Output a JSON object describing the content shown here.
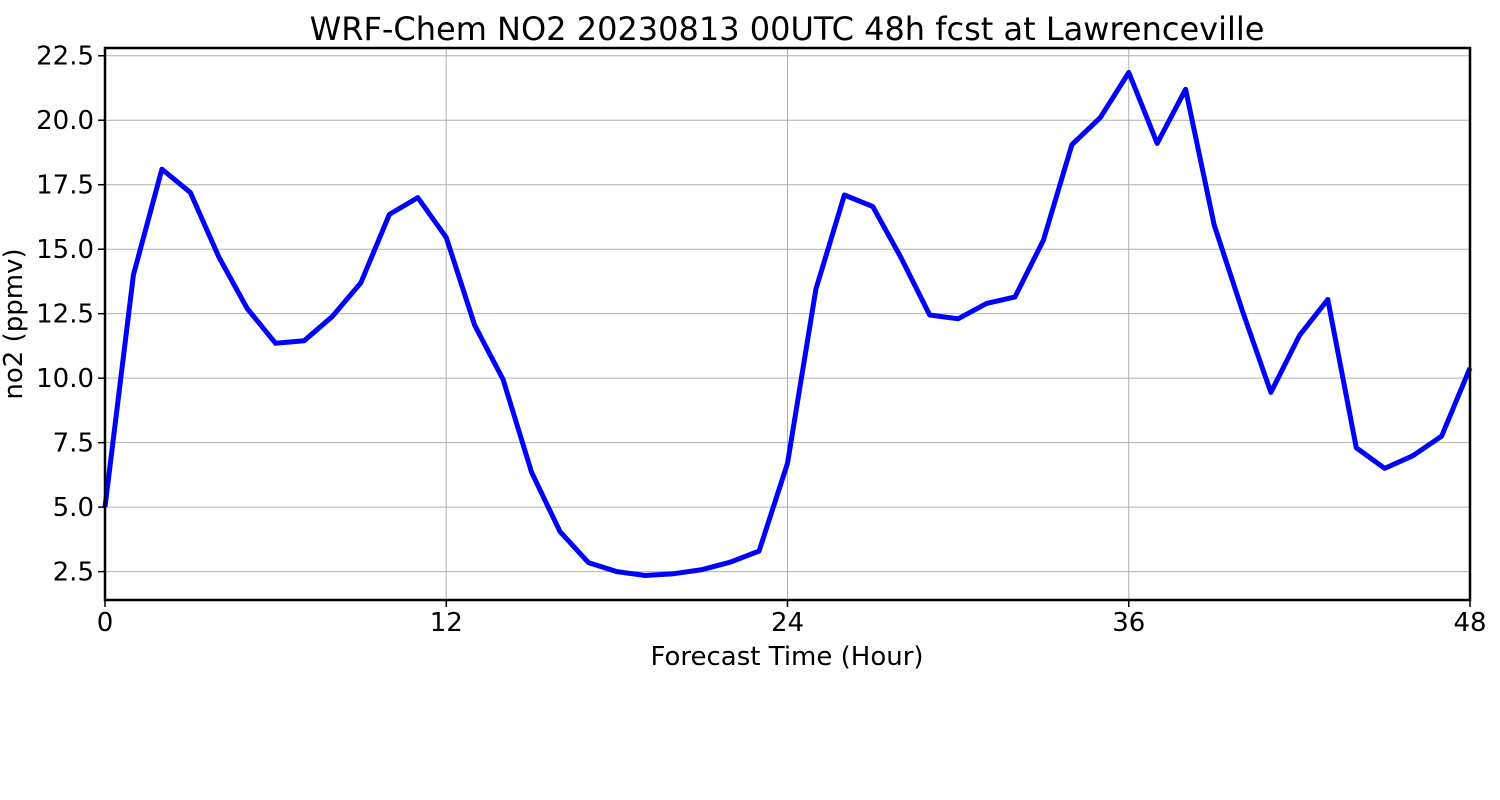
{
  "chart_data": {
    "type": "line",
    "title": "WRF-Chem NO2  20230813 00UTC 48h fcst at Lawrenceville",
    "xlabel": "Forecast Time (Hour)",
    "ylabel": "no2  (ppmv)",
    "xlim": [
      0,
      48
    ],
    "ylim": [
      1.4,
      22.8
    ],
    "xticks": [
      0,
      12,
      24,
      36,
      48
    ],
    "xtick_labels": [
      "0",
      "12",
      "24",
      "36",
      "48"
    ],
    "yticks": [
      2.5,
      5.0,
      7.5,
      10.0,
      12.5,
      15.0,
      17.5,
      20.0,
      22.5
    ],
    "ytick_labels": [
      "2.5",
      "5.0",
      "7.5",
      "10.0",
      "12.5",
      "15.0",
      "17.5",
      "20.0",
      "22.5"
    ],
    "grid": true,
    "line_color": "#0000ff",
    "series": [
      {
        "x": [
          0,
          1,
          2,
          3,
          4,
          5,
          6,
          7,
          8,
          9,
          10,
          11,
          12,
          13,
          14,
          15,
          16,
          17,
          18,
          19,
          20,
          21,
          22,
          23,
          24,
          25,
          26,
          27,
          28,
          29,
          30,
          31,
          32,
          33,
          34,
          35,
          36,
          37,
          38,
          39,
          40,
          41,
          42,
          43,
          44,
          45,
          46,
          47,
          48
        ],
        "values": [
          5.0,
          14.0,
          18.1,
          17.2,
          14.7,
          12.7,
          11.35,
          11.45,
          12.4,
          13.7,
          16.35,
          17.0,
          15.45,
          12.05,
          9.95,
          6.35,
          4.05,
          2.85,
          2.5,
          2.35,
          2.42,
          2.58,
          2.87,
          3.3,
          6.7,
          13.45,
          17.1,
          16.65,
          14.65,
          12.45,
          12.3,
          12.9,
          13.15,
          15.35,
          19.05,
          20.1,
          21.85,
          19.1,
          21.2,
          15.95,
          12.6,
          9.45,
          11.65,
          13.05,
          7.3,
          6.5,
          7.0,
          7.75,
          10.4
        ]
      }
    ]
  }
}
